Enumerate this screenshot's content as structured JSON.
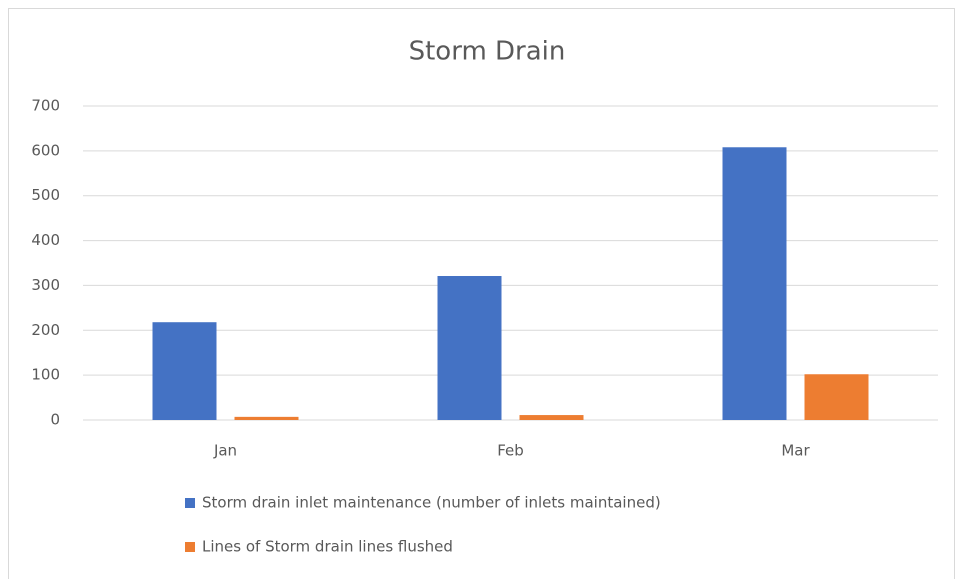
{
  "chart_data": {
    "type": "bar",
    "title": "Storm Drain",
    "categories": [
      "Jan",
      "Feb",
      "Mar"
    ],
    "series": [
      {
        "name": "Storm drain inlet maintenance (number of inlets maintained)",
        "color": "#4472c4",
        "values": [
          218,
          321,
          608
        ]
      },
      {
        "name": "Lines of Storm drain lines flushed",
        "color": "#ed7d31",
        "values": [
          7,
          11,
          102
        ]
      }
    ],
    "ylim": [
      0,
      700
    ],
    "yticks": [
      0,
      100,
      200,
      300,
      400,
      500,
      600,
      700
    ],
    "grid": true,
    "legend": "bottom"
  }
}
